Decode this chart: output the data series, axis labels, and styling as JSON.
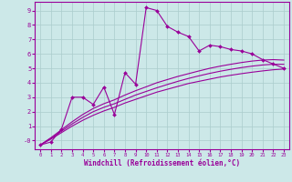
{
  "xlabel": "Windchill (Refroidissement éolien,°C)",
  "bg_color": "#cce8e8",
  "grid_color": "#aacccc",
  "line_color": "#990099",
  "x_ticks": [
    0,
    1,
    2,
    3,
    4,
    5,
    6,
    7,
    8,
    9,
    10,
    11,
    12,
    13,
    14,
    15,
    16,
    17,
    18,
    19,
    20,
    21,
    22,
    23
  ],
  "y_ticks": [
    0,
    1,
    2,
    3,
    4,
    5,
    6,
    7,
    8,
    9
  ],
  "ylim": [
    -0.6,
    9.6
  ],
  "xlim": [
    -0.5,
    23.5
  ],
  "jagged_x": [
    0,
    1,
    2,
    3,
    4,
    5,
    6,
    7,
    8,
    9,
    10,
    11,
    12,
    13,
    14,
    15,
    16,
    17,
    18,
    19,
    20,
    21,
    22,
    23
  ],
  "jagged_y": [
    -0.3,
    -0.1,
    0.8,
    3.0,
    3.0,
    2.5,
    3.7,
    1.8,
    4.7,
    3.9,
    9.2,
    9.0,
    7.9,
    7.5,
    7.2,
    6.2,
    6.6,
    6.5,
    6.3,
    6.2,
    6.0,
    5.6,
    5.3,
    5.0
  ],
  "smooth1_x": [
    0,
    1,
    2,
    3,
    4,
    5,
    6,
    7,
    8,
    9,
    10,
    11,
    12,
    13,
    14,
    15,
    16,
    17,
    18,
    19,
    20,
    21,
    22,
    23
  ],
  "smooth1_y": [
    -0.3,
    0.1,
    0.55,
    1.0,
    1.4,
    1.75,
    2.05,
    2.3,
    2.6,
    2.85,
    3.1,
    3.35,
    3.55,
    3.75,
    3.95,
    4.1,
    4.25,
    4.4,
    4.52,
    4.63,
    4.73,
    4.82,
    4.9,
    4.95
  ],
  "smooth2_x": [
    0,
    1,
    2,
    3,
    4,
    5,
    6,
    7,
    8,
    9,
    10,
    11,
    12,
    13,
    14,
    15,
    16,
    17,
    18,
    19,
    20,
    21,
    22,
    23
  ],
  "smooth2_y": [
    -0.3,
    0.15,
    0.65,
    1.15,
    1.6,
    2.0,
    2.3,
    2.55,
    2.85,
    3.15,
    3.4,
    3.65,
    3.88,
    4.1,
    4.3,
    4.48,
    4.65,
    4.8,
    4.93,
    5.05,
    5.15,
    5.23,
    5.28,
    5.28
  ],
  "smooth3_x": [
    0,
    1,
    2,
    3,
    4,
    5,
    6,
    7,
    8,
    9,
    10,
    11,
    12,
    13,
    14,
    15,
    16,
    17,
    18,
    19,
    20,
    21,
    22,
    23
  ],
  "smooth3_y": [
    -0.3,
    0.2,
    0.75,
    1.3,
    1.8,
    2.22,
    2.55,
    2.82,
    3.15,
    3.45,
    3.72,
    4.0,
    4.22,
    4.44,
    4.63,
    4.82,
    5.0,
    5.15,
    5.28,
    5.4,
    5.5,
    5.57,
    5.6,
    5.57
  ]
}
